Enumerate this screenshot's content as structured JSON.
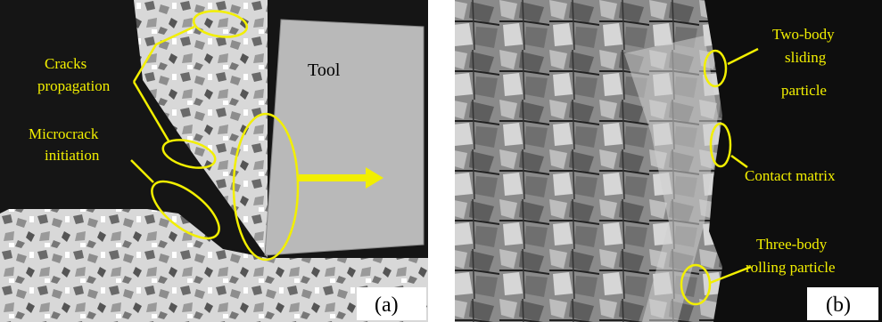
{
  "panels": [
    {
      "label": "(a)",
      "tool": "Tool",
      "annotations": [
        [
          "Cracks",
          "propagation"
        ],
        [
          "Microcrack",
          "initiation"
        ]
      ]
    },
    {
      "label": "(b)",
      "annotations": [
        [
          "Two-body",
          "sliding",
          "particle"
        ],
        [
          "Contact matrix"
        ],
        [
          "Three-body",
          "rolling particle"
        ]
      ]
    }
  ]
}
